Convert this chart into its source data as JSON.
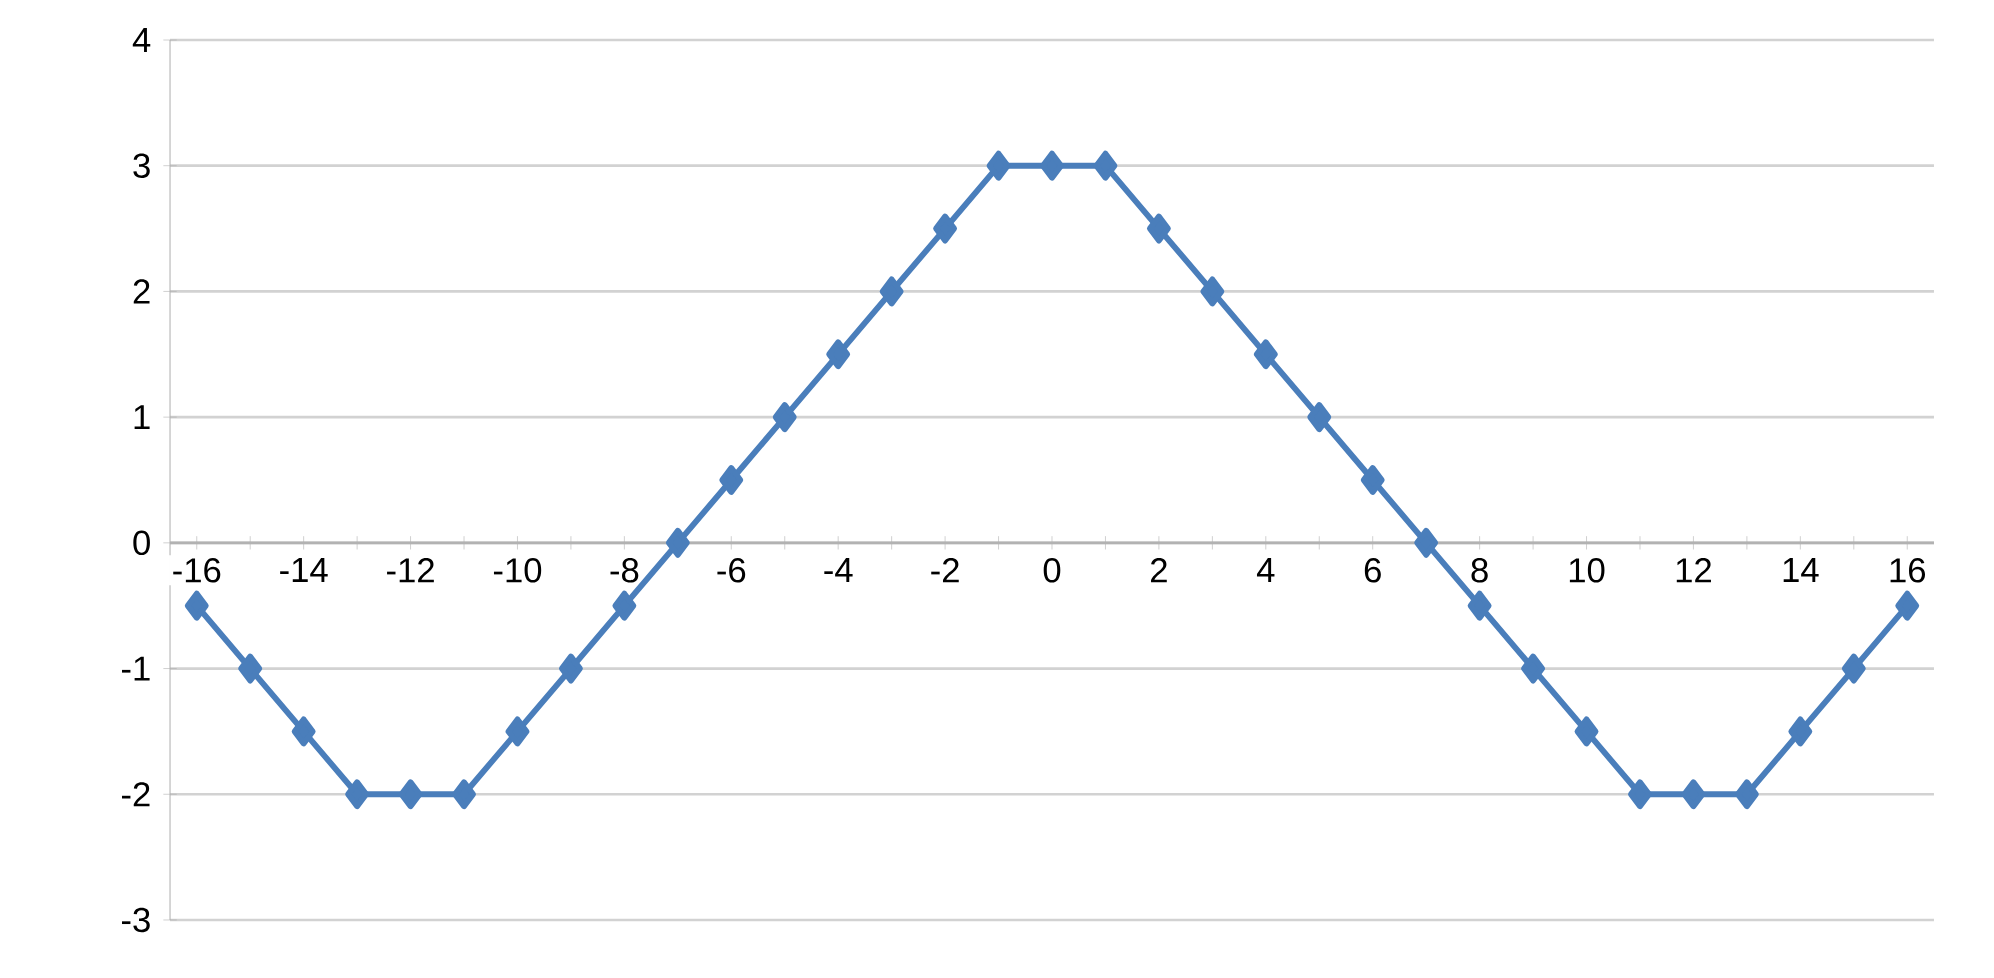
{
  "chart_data": {
    "type": "line",
    "x": [
      -16,
      -15,
      -14,
      -13,
      -12,
      -11,
      -10,
      -9,
      -8,
      -7,
      -6,
      -5,
      -4,
      -3,
      -2,
      -1,
      0,
      1,
      2,
      3,
      4,
      5,
      6,
      7,
      8,
      9,
      10,
      11,
      12,
      13,
      14,
      15,
      16
    ],
    "series": [
      {
        "color": "#4a7ebb",
        "values": [
          -0.5,
          -1,
          -1.5,
          -2,
          -2,
          -2,
          -1.5,
          -1,
          -0.5,
          0,
          0.5,
          1,
          1.5,
          2,
          2.5,
          3,
          3,
          3,
          2.5,
          2,
          1.5,
          1,
          0.5,
          0,
          -0.5,
          -1,
          -1.5,
          -2,
          -2,
          -2,
          -1.5,
          -1,
          -0.5
        ]
      }
    ],
    "xlim": [
      -16.5,
      16.5
    ],
    "ylim": [
      -3,
      4
    ],
    "xticks": [
      -16,
      -14,
      -12,
      -10,
      -8,
      -6,
      -4,
      -2,
      0,
      2,
      4,
      6,
      8,
      10,
      12,
      14,
      16
    ],
    "yticks": [
      -3,
      -2,
      -1,
      0,
      1,
      2,
      3,
      4
    ],
    "grid": "y",
    "marker": "diamond",
    "line_style": "solid"
  }
}
